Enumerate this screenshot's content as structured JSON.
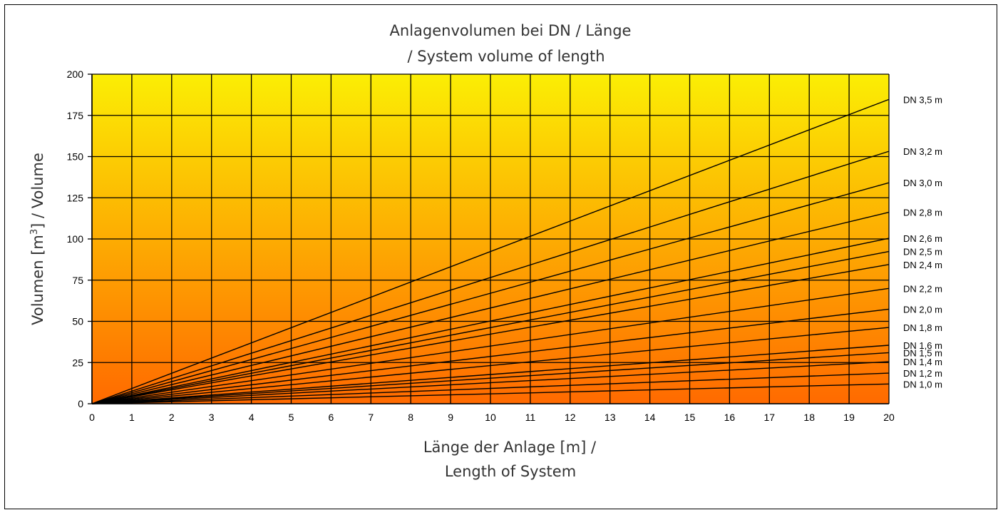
{
  "chart_data": {
    "type": "line",
    "title": "Anlagenvolumen bei DN / Länge",
    "subtitle": "/ System volume of length",
    "xlabel": "Länge der Anlage [m] /",
    "xlabel_line2": "Length of System",
    "ylabel_pre": "Volumen [m",
    "ylabel_sup": "3",
    "ylabel_post": "] / Volume",
    "xlim": [
      0,
      20
    ],
    "ylim": [
      0,
      200
    ],
    "x_ticks": [
      0,
      1,
      2,
      3,
      4,
      5,
      6,
      7,
      8,
      9,
      10,
      11,
      12,
      13,
      14,
      15,
      16,
      17,
      18,
      19,
      20
    ],
    "y_ticks": [
      0,
      25,
      50,
      75,
      100,
      125,
      150,
      175,
      200
    ],
    "grid": true,
    "background_gradient": {
      "top": "#FBEE04",
      "bottom": "#FF6A00"
    },
    "x": [
      0,
      20
    ],
    "series": [
      {
        "name": "DN 3,5 m",
        "values": [
          0,
          184.7
        ]
      },
      {
        "name": "DN 3,2 m",
        "values": [
          0,
          153.2
        ]
      },
      {
        "name": "DN 3,0 m",
        "values": [
          0,
          134.1
        ]
      },
      {
        "name": "DN 2,8 m",
        "values": [
          0,
          116.2
        ]
      },
      {
        "name": "DN 2,6 m",
        "values": [
          0,
          100.4
        ]
      },
      {
        "name": "DN 2,5 m",
        "values": [
          0,
          92.4
        ]
      },
      {
        "name": "DN 2,4 m",
        "values": [
          0,
          84.5
        ]
      },
      {
        "name": "DN 2,2 m",
        "values": [
          0,
          70.0
        ]
      },
      {
        "name": "DN 2,0 m",
        "values": [
          0,
          57.4
        ]
      },
      {
        "name": "DN 1,8 m",
        "values": [
          0,
          46.3
        ]
      },
      {
        "name": "DN 1,6 m",
        "values": [
          0,
          35.5
        ]
      },
      {
        "name": "DN 1,5 m",
        "values": [
          0,
          31.0
        ]
      },
      {
        "name": "DN 1,4 m",
        "values": [
          0,
          25.5
        ]
      },
      {
        "name": "DN 1,2 m",
        "values": [
          0,
          18.6
        ]
      },
      {
        "name": "DN 1,0 m",
        "values": [
          0,
          12.0
        ]
      }
    ],
    "series_color": "#000000"
  }
}
